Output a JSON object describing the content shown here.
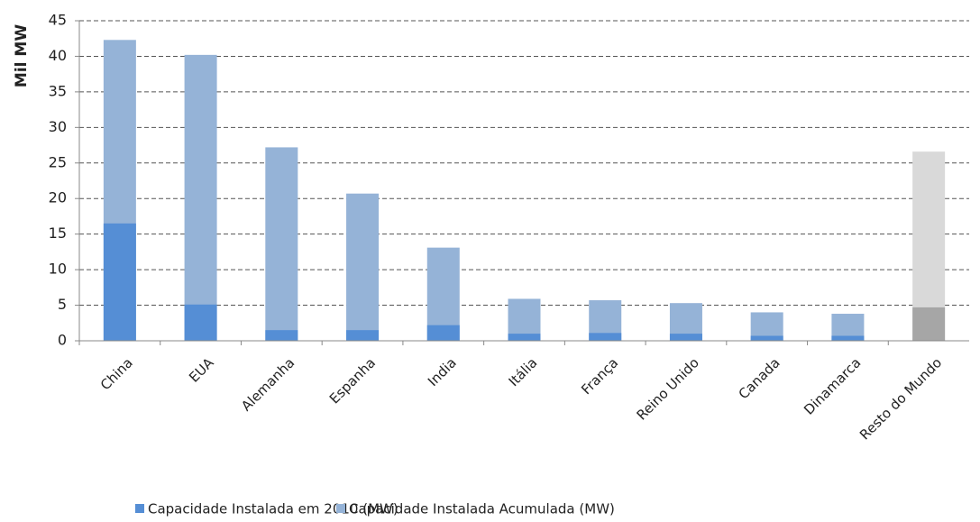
{
  "chart_data": {
    "type": "bar",
    "overlay": true,
    "y_label": "Mil MW",
    "categories": [
      "China",
      "EUA",
      "Alemanha",
      "Espanha",
      "India",
      "Itália",
      "França",
      "Reino Unido",
      "Canada",
      "Dinamarca",
      "Resto do Mundo"
    ],
    "series": [
      {
        "name": "Capacidade Instalada Acumulada (MW)",
        "color": "#95b3d7",
        "colors": [
          "#95b3d7",
          "#95b3d7",
          "#95b3d7",
          "#95b3d7",
          "#95b3d7",
          "#95b3d7",
          "#95b3d7",
          "#95b3d7",
          "#95b3d7",
          "#95b3d7",
          "#d9d9d9"
        ],
        "values": [
          42.3,
          40.2,
          27.2,
          20.7,
          13.1,
          5.9,
          5.7,
          5.3,
          4.0,
          3.8,
          26.6
        ]
      },
      {
        "name": "Capacidade Instalada em 2010 (MW)",
        "color": "#558ed5",
        "colors": [
          "#558ed5",
          "#558ed5",
          "#558ed5",
          "#558ed5",
          "#558ed5",
          "#558ed5",
          "#558ed5",
          "#558ed5",
          "#558ed5",
          "#558ed5",
          "#a6a6a6"
        ],
        "values": [
          16.5,
          5.1,
          1.5,
          1.5,
          2.2,
          1.0,
          1.1,
          1.0,
          0.7,
          0.7,
          4.7
        ]
      }
    ],
    "legend_order": [
      1,
      0
    ],
    "ylim": [
      0,
      45
    ],
    "yticks": [
      0,
      5,
      10,
      15,
      20,
      25,
      30,
      35,
      40,
      45
    ],
    "grid": true
  }
}
